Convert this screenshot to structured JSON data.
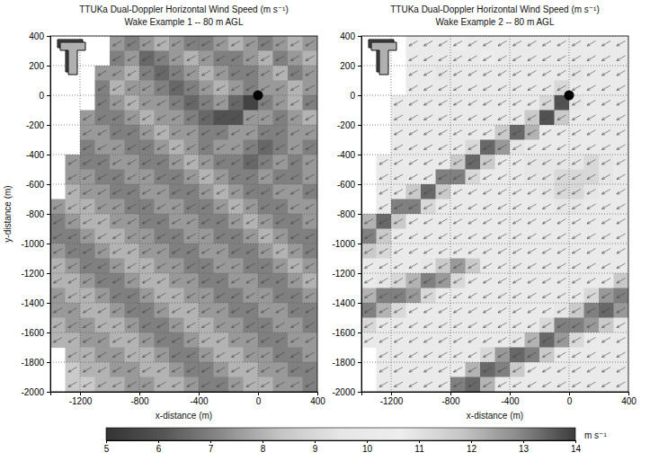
{
  "chart_data": [
    {
      "type": "heatmap",
      "title": "TTUKa Dual-Doppler Horizontal Wind Speed (m s⁻¹)",
      "subtitle": "Wake Example 1 -- 80 m AGL",
      "x_label": "x-distance (m)",
      "y_label": "y-distance (m)",
      "xlim": [
        -1400,
        400
      ],
      "ylim": [
        -2000,
        400
      ],
      "xticks": [
        -1200,
        -800,
        -400,
        0,
        400
      ],
      "yticks": [
        400,
        200,
        0,
        -200,
        -400,
        -600,
        -800,
        -1000,
        -1200,
        -1400,
        -1600,
        -1800,
        -2000
      ],
      "grid": true,
      "wind_vector_direction": 210,
      "turbine": {
        "x": 0,
        "y": 0
      },
      "x": [
        -1350,
        -1250,
        -1150,
        -1050,
        -950,
        -850,
        -750,
        -650,
        -550,
        -450,
        -350,
        -250,
        -150,
        -50,
        50,
        150,
        250,
        350
      ],
      "y": [
        350,
        250,
        150,
        50,
        -50,
        -150,
        -250,
        -350,
        -450,
        -550,
        -650,
        -750,
        -850,
        -950,
        -1050,
        -1150,
        -1250,
        -1350,
        -1450,
        -1550,
        -1650,
        -1750,
        -1850,
        -1950
      ],
      "z": [
        [
          null,
          null,
          null,
          null,
          7.5,
          7,
          7.5,
          8,
          7.5,
          7,
          7,
          7.5,
          8,
          7.5,
          7,
          7.5,
          8,
          7.5
        ],
        [
          null,
          null,
          null,
          null,
          7,
          7.5,
          6.5,
          7,
          7.5,
          8,
          7.5,
          7,
          7,
          7.5,
          8,
          7,
          7.5,
          8
        ],
        [
          null,
          null,
          null,
          7.5,
          7.5,
          8,
          7,
          6.5,
          7,
          7.5,
          8,
          7.5,
          7,
          7,
          7.5,
          8,
          7,
          7.5
        ],
        [
          null,
          null,
          null,
          7,
          8,
          7.5,
          7.5,
          7,
          6.5,
          7,
          7.5,
          8,
          7.5,
          7,
          7.5,
          7.5,
          8,
          7.5
        ],
        [
          null,
          null,
          null,
          7,
          7.5,
          8,
          7.5,
          7.5,
          7,
          6.5,
          7,
          7.5,
          6.5,
          5.5,
          7,
          7.5,
          8,
          7
        ],
        [
          null,
          null,
          7.5,
          7,
          7,
          7.5,
          8,
          7.5,
          7.5,
          7,
          6.5,
          6,
          6,
          7.5,
          7.5,
          7,
          7.5,
          8
        ],
        [
          null,
          null,
          7.5,
          7.5,
          7,
          7,
          7.5,
          8,
          7.5,
          7.5,
          7,
          7,
          7.5,
          7.5,
          7,
          7,
          7.5,
          7.5
        ],
        [
          null,
          null,
          7,
          7.5,
          7.5,
          7,
          7,
          7.5,
          8,
          7.5,
          7,
          7.5,
          7.5,
          7,
          6.5,
          7,
          7.5,
          7
        ],
        [
          null,
          7.5,
          7,
          7,
          7.5,
          7.5,
          7,
          7,
          7.5,
          8,
          7.5,
          7,
          7,
          6.5,
          7,
          7.5,
          7,
          7.5
        ],
        [
          null,
          7.5,
          7.5,
          7,
          7,
          7.5,
          7.5,
          7,
          7,
          7.5,
          8,
          7.5,
          7,
          7,
          7.5,
          7,
          7,
          7.5
        ],
        [
          null,
          8,
          7.5,
          7.5,
          7,
          7,
          7.5,
          7.5,
          7,
          7,
          7.5,
          8,
          7.5,
          7,
          7,
          7.5,
          7.5,
          7
        ],
        [
          7.5,
          8,
          8,
          7.5,
          7.5,
          7,
          7,
          7.5,
          7.5,
          7,
          7,
          7.5,
          8,
          7.5,
          7,
          7,
          7.5,
          7.5
        ],
        [
          7,
          7.5,
          8,
          8,
          7.5,
          7.5,
          7,
          7,
          7.5,
          7.5,
          7,
          7,
          7.5,
          8,
          7.5,
          7,
          7,
          7.5
        ],
        [
          7,
          7,
          7.5,
          8,
          8,
          7.5,
          7.5,
          7,
          7,
          7.5,
          7.5,
          7,
          7,
          7.5,
          8,
          7.5,
          7,
          7
        ],
        [
          7.5,
          7,
          7,
          7.5,
          8,
          8,
          7.5,
          7.5,
          7,
          7,
          7.5,
          7.5,
          7,
          7,
          7.5,
          8,
          7.5,
          7
        ],
        [
          8,
          7.5,
          7,
          7,
          7.5,
          8,
          8,
          7.5,
          7.5,
          7,
          7,
          7.5,
          7.5,
          7,
          7,
          7.5,
          8,
          7.5
        ],
        [
          8,
          8,
          7.5,
          7,
          7,
          7.5,
          8,
          8,
          7.5,
          7.5,
          7,
          7,
          7.5,
          7.5,
          7,
          7,
          7.5,
          8
        ],
        [
          7.5,
          8,
          8,
          7.5,
          7,
          7,
          7.5,
          8,
          8,
          7.5,
          7.5,
          7,
          7,
          7.5,
          7.5,
          7,
          7,
          7.5
        ],
        [
          7.5,
          7.5,
          8,
          8,
          7.5,
          7,
          7,
          7.5,
          8,
          8,
          7.5,
          7.5,
          7,
          7,
          7.5,
          7.5,
          7,
          7
        ],
        [
          8,
          7.5,
          7.5,
          8,
          8,
          7.5,
          7,
          7,
          7.5,
          8,
          8,
          7.5,
          7.5,
          7,
          7,
          7.5,
          7.5,
          7
        ],
        [
          8,
          8,
          7.5,
          7.5,
          8,
          8,
          7.5,
          7,
          7,
          7.5,
          8,
          8,
          7.5,
          7.5,
          7,
          7,
          7.5,
          7.5
        ],
        [
          null,
          8,
          8,
          7.5,
          7.5,
          8,
          8,
          7.5,
          7,
          7,
          7.5,
          8,
          8,
          7.5,
          7.5,
          7,
          7,
          7.5
        ],
        [
          null,
          8.5,
          8,
          8,
          7.5,
          7.5,
          8,
          8,
          7.5,
          7,
          7,
          7.5,
          8,
          8,
          7.5,
          7.5,
          7,
          7
        ],
        [
          null,
          8.5,
          8.5,
          8,
          8,
          7.5,
          7.5,
          8,
          8,
          7.5,
          7,
          7,
          7.5,
          8,
          8,
          7.5,
          7.5,
          7
        ]
      ]
    },
    {
      "type": "heatmap",
      "title": "TTUKa Dual-Doppler Horizontal Wind Speed (m s⁻¹)",
      "subtitle": "Wake Example 2 -- 80 m AGL",
      "x_label": "x-distance (m)",
      "xlim": [
        -1400,
        400
      ],
      "ylim": [
        -2000,
        400
      ],
      "xticks": [
        -1200,
        -800,
        -400,
        0,
        400
      ],
      "yticks": [
        400,
        200,
        0,
        -200,
        -400,
        -600,
        -800,
        -1000,
        -1200,
        -1400,
        -1600,
        -1800,
        -2000
      ],
      "grid": true,
      "wind_vector_direction": 210,
      "turbine": {
        "x": 0,
        "y": 0
      },
      "x": [
        -1350,
        -1250,
        -1150,
        -1050,
        -950,
        -850,
        -750,
        -650,
        -550,
        -450,
        -350,
        -250,
        -150,
        -50,
        50,
        150,
        250,
        350
      ],
      "y": [
        350,
        250,
        150,
        50,
        -50,
        -150,
        -250,
        -350,
        -450,
        -550,
        -650,
        -750,
        -850,
        -950,
        -1050,
        -1150,
        -1250,
        -1350,
        -1450,
        -1550,
        -1650,
        -1750,
        -1850,
        -1950
      ],
      "z": [
        [
          null,
          null,
          null,
          10,
          10,
          10,
          10.5,
          10,
          10,
          10,
          10,
          10,
          10,
          10,
          10,
          10,
          10,
          10
        ],
        [
          null,
          null,
          null,
          10,
          10,
          10,
          10,
          10,
          10.5,
          10,
          10,
          10,
          10,
          10,
          10,
          10,
          10,
          10
        ],
        [
          null,
          null,
          null,
          10,
          10,
          9.5,
          10,
          10,
          10,
          10,
          10,
          10,
          10,
          10,
          9.5,
          10,
          10,
          10
        ],
        [
          null,
          null,
          null,
          10,
          10,
          10,
          10,
          10,
          10,
          10,
          10,
          10,
          10,
          9,
          10,
          10,
          10,
          10
        ],
        [
          null,
          null,
          10,
          10,
          10,
          10,
          10,
          10,
          10,
          10,
          10,
          10,
          9,
          6,
          9.5,
          10,
          10,
          10
        ],
        [
          null,
          null,
          10,
          10,
          10,
          10,
          10,
          10,
          10,
          10,
          10,
          8.5,
          6,
          8.5,
          10,
          10,
          10,
          10
        ],
        [
          null,
          null,
          10,
          10,
          10,
          10,
          10,
          10,
          10,
          8.5,
          6.5,
          8,
          10,
          10,
          10,
          10,
          10,
          10
        ],
        [
          null,
          null,
          10,
          10,
          10,
          10,
          10,
          9,
          6.5,
          7.5,
          9.5,
          10,
          10,
          10,
          10,
          10,
          10,
          10
        ],
        [
          null,
          10,
          10,
          10,
          10,
          10,
          8.5,
          6.5,
          8.5,
          10,
          10,
          9.5,
          9.5,
          9.5,
          9.5,
          9,
          9.5,
          10
        ],
        [
          null,
          10,
          10,
          10,
          10,
          7,
          7,
          9,
          10,
          10,
          10,
          9.5,
          9.5,
          9,
          9,
          9,
          9.5,
          10
        ],
        [
          null,
          10,
          10,
          8.5,
          6.5,
          8.5,
          10,
          10,
          10,
          10,
          10,
          10,
          9.5,
          9,
          9,
          9.5,
          10,
          10
        ],
        [
          null,
          10,
          7,
          7,
          9,
          10,
          10,
          10,
          10,
          10,
          10,
          10,
          10,
          9.5,
          9.5,
          10,
          10,
          10
        ],
        [
          8,
          6.5,
          8.5,
          10,
          10,
          10,
          10,
          10,
          10,
          10,
          10,
          10,
          10,
          10,
          10,
          10,
          10,
          10
        ],
        [
          7,
          8.5,
          10,
          10,
          10,
          10,
          10,
          10,
          10,
          10,
          10,
          10,
          10,
          10,
          10,
          10,
          10,
          10
        ],
        [
          8.5,
          9,
          10,
          10,
          10,
          10,
          10,
          10,
          10,
          10,
          10,
          10,
          10,
          10,
          10,
          10,
          10,
          10
        ],
        [
          10,
          10,
          10,
          10,
          9.5,
          8.5,
          7.5,
          8.5,
          10,
          10,
          10,
          10,
          10,
          10,
          10,
          10,
          10,
          10
        ],
        [
          10,
          9.5,
          9,
          8,
          7,
          7.5,
          9,
          10,
          10,
          10,
          10,
          10,
          10,
          10,
          10,
          10,
          10,
          8.5
        ],
        [
          8,
          7,
          7,
          7.5,
          9,
          10,
          10,
          10,
          10,
          10,
          10,
          10,
          10,
          10,
          10,
          9,
          7.5,
          7
        ],
        [
          7,
          8,
          9,
          10,
          10,
          10,
          10,
          10,
          10,
          10,
          10,
          10,
          10,
          9.5,
          8.5,
          7,
          6.5,
          7.5
        ],
        [
          9,
          10,
          10,
          10,
          10,
          10,
          10,
          10,
          10,
          10,
          10,
          10,
          9,
          7,
          7,
          7.5,
          8.5,
          9.5
        ],
        [
          10,
          10,
          10,
          10,
          10,
          10,
          10,
          10,
          10,
          10,
          9.5,
          8,
          6.5,
          7.5,
          9,
          10,
          10,
          10
        ],
        [
          null,
          10,
          10,
          10,
          10,
          10,
          10,
          10,
          9,
          7.5,
          6.5,
          7,
          8.5,
          10,
          10,
          10,
          10,
          10
        ],
        [
          null,
          10,
          10,
          10,
          10,
          10,
          10,
          8,
          6.5,
          7,
          8.5,
          10,
          10,
          10,
          10,
          10,
          10,
          10
        ],
        [
          null,
          10,
          10,
          10,
          10,
          10,
          7,
          6.5,
          8,
          10,
          10,
          10,
          10,
          10,
          10,
          10,
          10,
          10
        ]
      ]
    }
  ],
  "colorbar": {
    "range": [
      5,
      14
    ],
    "ticks": [
      5,
      6,
      7,
      8,
      9,
      10,
      11,
      12,
      13,
      14
    ],
    "label": "m s⁻¹"
  }
}
